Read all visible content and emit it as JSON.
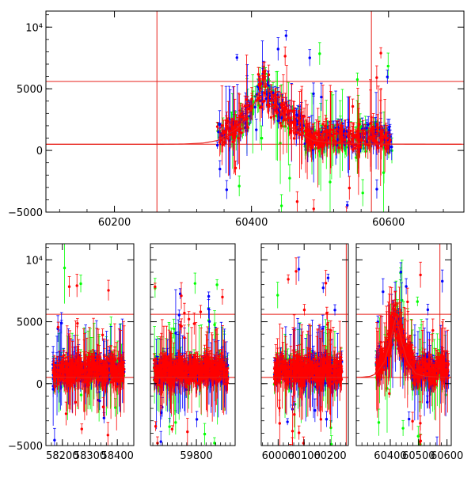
{
  "chart_data": [
    {
      "type": "scatter",
      "title": "",
      "xlabel": "",
      "ylabel": "",
      "xlim": [
        60100,
        60710
      ],
      "ylim": [
        -5000,
        11300
      ],
      "x_ticks": [
        60200,
        60400,
        60600
      ],
      "x_tick_labels": [
        "60200",
        "60400",
        "60600"
      ],
      "y_ticks": [
        -5000,
        0,
        5000,
        10000
      ],
      "y_tick_labels": [
        "−5000",
        "0",
        "5000",
        "10⁴"
      ],
      "segments": [
        [
          60350,
          60605
        ]
      ],
      "series": [
        {
          "color": "#0000ff",
          "values": [
            [
              60360,
              1000
            ],
            [
              60390,
              1700
            ],
            [
              60420,
              5000
            ],
            [
              60450,
              1500
            ],
            [
              60480,
              -1500
            ],
            [
              60510,
              2000
            ],
            [
              60550,
              600
            ],
            [
              60580,
              1200
            ],
            [
              60600,
              700
            ]
          ]
        },
        {
          "color": "#00ff00",
          "values": [
            [
              60365,
              300
            ],
            [
              60395,
              1600
            ],
            [
              60425,
              4200
            ],
            [
              60460,
              1000
            ],
            [
              60490,
              2500
            ],
            [
              60520,
              -500
            ],
            [
              60555,
              1500
            ],
            [
              60590,
              800
            ]
          ]
        },
        {
          "color": "#ff0000",
          "values": [
            [
              60355,
              900
            ],
            [
              60385,
              1800
            ],
            [
              60410,
              3500
            ],
            [
              60430,
              5800
            ],
            [
              60445,
              4000
            ],
            [
              60470,
              1300
            ],
            [
              60500,
              1600
            ],
            [
              60530,
              1000
            ],
            [
              60560,
              1100
            ],
            [
              60600,
              1000
            ]
          ]
        }
      ],
      "hlines": [
        5600,
        500
      ],
      "vlines": [
        60262,
        60575
      ],
      "model_curve": [
        [
          60262,
          500
        ],
        [
          60300,
          520
        ],
        [
          60330,
          600
        ],
        [
          60350,
          800
        ],
        [
          60380,
          1800
        ],
        [
          60400,
          3400
        ],
        [
          60420,
          5500
        ],
        [
          60440,
          3400
        ],
        [
          60460,
          1800
        ],
        [
          60490,
          800
        ],
        [
          60520,
          600
        ],
        [
          60580,
          520
        ],
        [
          60710,
          500
        ]
      ]
    },
    {
      "type": "scatter",
      "title": "",
      "xlabel": "",
      "ylabel": "",
      "x_axis_breaks": true,
      "ylim": [
        -5000,
        11300
      ],
      "y_ticks": [
        -5000,
        0,
        5000,
        10000
      ],
      "y_tick_labels": [
        "−5000",
        "0",
        "5000",
        "10⁴"
      ],
      "panels": [
        {
          "xlim": [
            58140,
            58460
          ],
          "x_ticks": [
            58200,
            58300,
            58400
          ],
          "x_tick_labels": [
            "58200",
            "58300",
            "58400"
          ],
          "segments": [
            [
              58165,
              58425
            ]
          ]
        },
        {
          "xlim": [
            59610,
            59960
          ],
          "x_ticks": [
            59800
          ],
          "x_tick_labels": [
            "59800"
          ],
          "segments": [
            [
              59625,
              59930
            ]
          ]
        },
        {
          "xlim": [
            59935,
            60270
          ],
          "x_ticks": [
            60000,
            60100,
            60200
          ],
          "x_tick_labels": [
            "60000",
            "60100",
            "60200"
          ],
          "segments": [
            [
              59985,
              60245
            ]
          ]
        },
        {
          "xlim": [
            60280,
            60615
          ],
          "x_ticks": [
            60400,
            60500,
            60600
          ],
          "x_tick_labels": [
            "60400",
            "60500",
            "60600"
          ],
          "segments": [
            [
              60350,
              60605
            ]
          ]
        }
      ],
      "series": [
        {
          "color": "#0000ff",
          "values": [
            [
              58200,
              600
            ],
            [
              58300,
              1200
            ],
            [
              58400,
              800
            ],
            [
              59700,
              900
            ],
            [
              59800,
              1000
            ],
            [
              60050,
              800
            ],
            [
              60150,
              1100
            ],
            [
              60420,
              4200
            ],
            [
              60550,
              900
            ]
          ]
        },
        {
          "color": "#00ff00",
          "values": [
            [
              58210,
              1500
            ],
            [
              58310,
              2200
            ],
            [
              59720,
              1800
            ],
            [
              59780,
              3000
            ],
            [
              60070,
              1200
            ],
            [
              60180,
              700
            ],
            [
              60430,
              3600
            ],
            [
              60560,
              1300
            ]
          ]
        },
        {
          "color": "#ff0000",
          "values": [
            [
              58220,
              1100
            ],
            [
              58320,
              1300
            ],
            [
              58390,
              900
            ],
            [
              59740,
              1200
            ],
            [
              59840,
              1000
            ],
            [
              60090,
              1000
            ],
            [
              60200,
              1300
            ],
            [
              60430,
              5200
            ],
            [
              60580,
              1000
            ]
          ]
        }
      ],
      "hlines": [
        5600,
        500
      ],
      "vlines": [
        60262,
        60575
      ],
      "model_curve": [
        [
          60262,
          500
        ],
        [
          60300,
          520
        ],
        [
          60330,
          600
        ],
        [
          60350,
          800
        ],
        [
          60380,
          1800
        ],
        [
          60400,
          3400
        ],
        [
          60420,
          5500
        ],
        [
          60440,
          3400
        ],
        [
          60460,
          1800
        ],
        [
          60490,
          800
        ],
        [
          60520,
          600
        ],
        [
          60580,
          520
        ],
        [
          60615,
          500
        ]
      ]
    }
  ]
}
